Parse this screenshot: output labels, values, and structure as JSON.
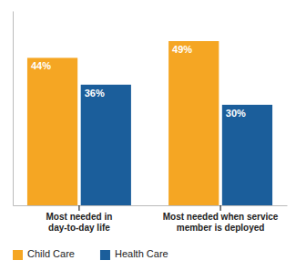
{
  "chart_data": {
    "type": "bar",
    "categories": [
      "Most needed in\nday-to-day life",
      "Most needed when service\nmember is deployed"
    ],
    "series": [
      {
        "name": "Child Care",
        "color": "#F5A623",
        "values": [
          44,
          49
        ],
        "value_labels": [
          "44%",
          "49%"
        ]
      },
      {
        "name": "Health Care",
        "color": "#1B5E9B",
        "values": [
          36,
          30
        ],
        "value_labels": [
          "36%",
          "30%"
        ]
      }
    ],
    "ylim": [
      0,
      58
    ],
    "data_labels": true,
    "tick_labels": "x",
    "grid": false,
    "legend": "bottom"
  }
}
